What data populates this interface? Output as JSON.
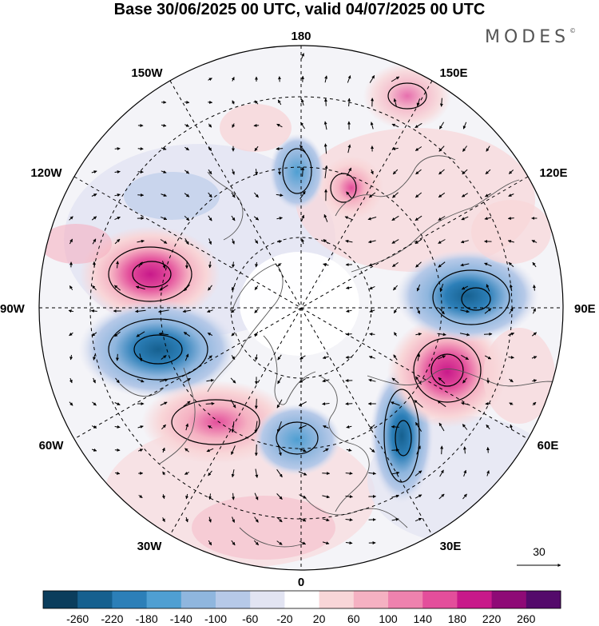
{
  "title": "Base 30/06/2025 00 UTC, valid 04/07/2025 00 UTC",
  "brand": "MODES",
  "brand_mark": "©",
  "map": {
    "projection": "north-polar-stereographic",
    "longitude_labels": {
      "top": "180",
      "bottom": "0",
      "left": "90W",
      "right": "90E",
      "upper_left_1": "150W",
      "upper_left_2": "120W",
      "upper_right_1": "150E",
      "upper_right_2": "120E",
      "lower_left_1": "60W",
      "lower_left_2": "30W",
      "lower_right_1": "60E",
      "lower_right_2": "30E"
    },
    "vector_reference": "30",
    "anomaly_centres": [
      {
        "name": "positive-anomaly-west-canada-pacific",
        "sign": "positive",
        "strength": 200
      },
      {
        "name": "negative-anomaly-canada",
        "sign": "negative",
        "strength": -240
      },
      {
        "name": "positive-anomaly-north-atlantic",
        "sign": "positive",
        "strength": 160
      },
      {
        "name": "negative-anomaly-europe-west",
        "sign": "negative",
        "strength": -140
      },
      {
        "name": "negative-anomaly-europe-east",
        "sign": "negative",
        "strength": -180
      },
      {
        "name": "positive-anomaly-west-siberia",
        "sign": "positive",
        "strength": 220
      },
      {
        "name": "negative-anomaly-central-siberia",
        "sign": "negative",
        "strength": -180
      },
      {
        "name": "negative-anomaly-bering",
        "sign": "negative",
        "strength": -140
      },
      {
        "name": "positive-anomaly-east-siberia",
        "sign": "positive",
        "strength": 140
      },
      {
        "name": "positive-anomaly-north-pacific",
        "sign": "positive",
        "strength": 100
      }
    ]
  },
  "colorbar": {
    "labels": [
      "-260",
      "-220",
      "-180",
      "-140",
      "-100",
      "-60",
      "-20",
      "20",
      "60",
      "100",
      "140",
      "180",
      "220",
      "260"
    ],
    "colors": [
      "#0b3d5c",
      "#16608f",
      "#2c7fb8",
      "#4f9fd2",
      "#8fb6de",
      "#b6c9e8",
      "#e2e4f2",
      "#ffffff",
      "#f8d6d8",
      "#f5b1c2",
      "#ee82ae",
      "#e34e9b",
      "#c8198a",
      "#8e0a76",
      "#540a6b"
    ]
  }
}
